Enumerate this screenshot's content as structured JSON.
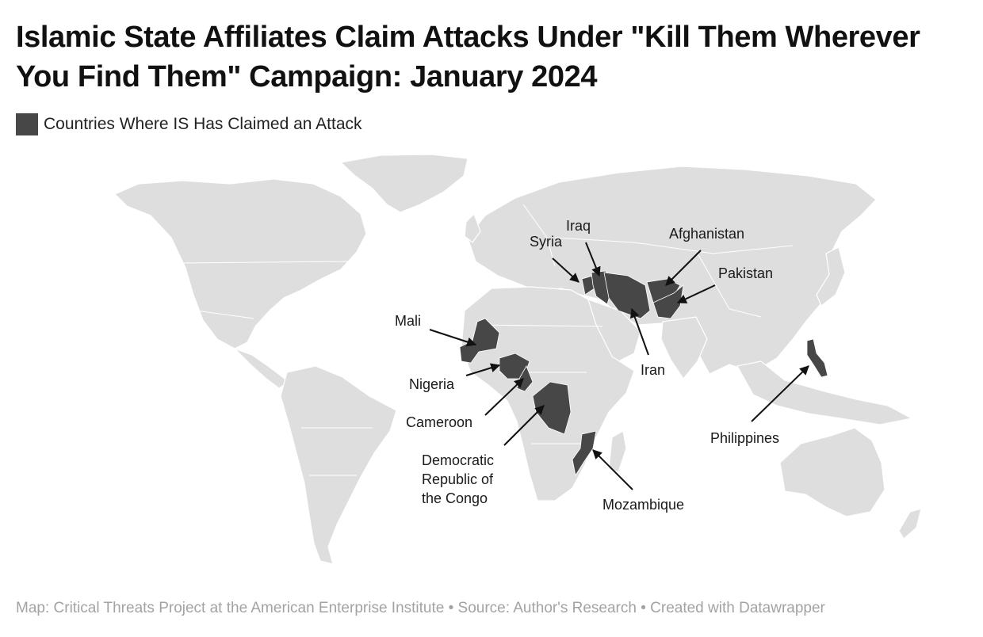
{
  "title": "Islamic State Affiliates Claim Attacks Under \"Kill Them Wherever You Find Them\" Campaign: January 2024",
  "legend": {
    "label": "Countries Where IS Has Claimed an Attack",
    "color": "#474747"
  },
  "colors": {
    "land": "#dedede",
    "highlight": "#474747",
    "footer_text": "#a3a3a3"
  },
  "callouts": {
    "syria": "Syria",
    "iraq": "Iraq",
    "afghanistan": "Afghanistan",
    "pakistan": "Pakistan",
    "iran": "Iran",
    "mali": "Mali",
    "nigeria": "Nigeria",
    "cameroon": "Cameroon",
    "drc": [
      "Democratic",
      "Republic of",
      "the Congo"
    ],
    "mozambique": "Mozambique",
    "philippines": "Philippines"
  },
  "footer": "Map: Critical Threats Project at the American Enterprise Institute • Source: Author's Research • Created with Datawrapper"
}
